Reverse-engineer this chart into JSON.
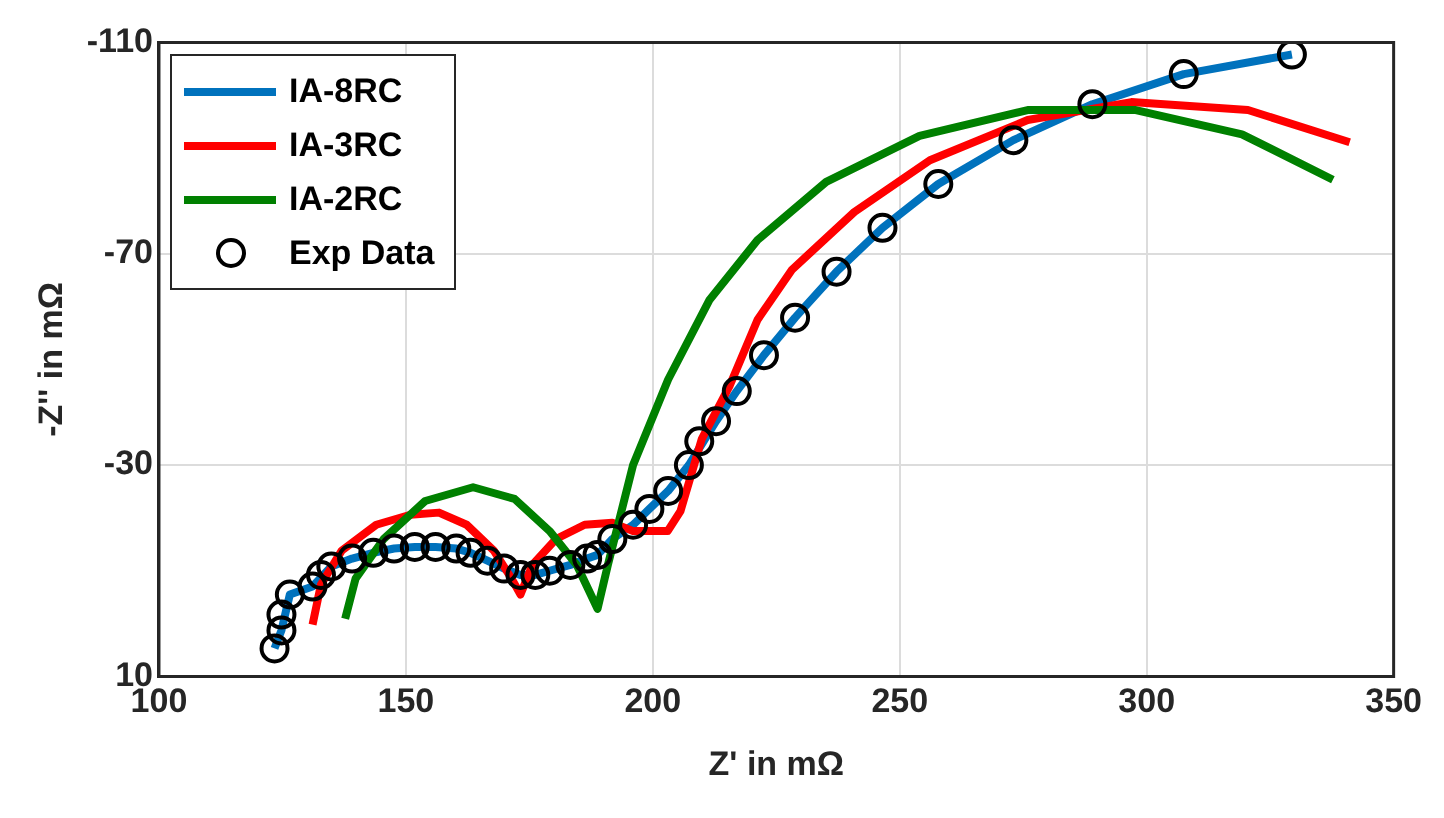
{
  "chart_data": {
    "type": "line",
    "xlabel": "Z' in mΩ",
    "ylabel": "-Z'' in mΩ",
    "xlim": [
      100,
      350
    ],
    "xticks": [
      100,
      150,
      200,
      250,
      300,
      350
    ],
    "ylim": [
      10,
      -110
    ],
    "yticks": [
      -110,
      -70,
      -30,
      10
    ],
    "grid": true,
    "legend": "top left",
    "series": [
      {
        "name": "IA-8RC",
        "color": "#0072bd",
        "marker": "none",
        "x": [
          123.4,
          124.8,
          126.5,
          131.1,
          134.9,
          139.1,
          143.4,
          147.6,
          151.8,
          156.0,
          160.2,
          163.1,
          166.5,
          169.9,
          173.2,
          176.2,
          179.1,
          183.3,
          186.7,
          188.8,
          191.8,
          196.0,
          199.3,
          203.1,
          207.3,
          212.8,
          217.0,
          222.5,
          228.8,
          237.2,
          246.5,
          257.8,
          273.0,
          289.0,
          307.5,
          329.4
        ],
        "values": [
          4.7,
          1.3,
          -5.5,
          -7.0,
          -10.8,
          -12.3,
          -13.4,
          -14.2,
          -14.5,
          -14.5,
          -14.2,
          -13.4,
          -11.9,
          -10.4,
          -9.2,
          -9.2,
          -10.0,
          -11.1,
          -12.3,
          -13.0,
          -16.0,
          -18.7,
          -21.7,
          -25.1,
          -30.0,
          -38.3,
          -44.0,
          -50.8,
          -57.9,
          -66.6,
          -74.9,
          -83.2,
          -91.5,
          -98.3,
          -104.0,
          -107.7
        ]
      },
      {
        "name": "IA-3RC",
        "color": "#ff0000",
        "marker": "none",
        "x": [
          131.1,
          132.8,
          137.0,
          144.0,
          150.9,
          156.7,
          162.3,
          167.8,
          171.4,
          173.2,
          175.6,
          180.4,
          186.2,
          191.8,
          196.0,
          203.0,
          205.6,
          209.9,
          215.6,
          221.2,
          228.2,
          240.8,
          256.1,
          275.9,
          296.9,
          320.5,
          341.1
        ],
        "values": [
          0.2,
          -7.4,
          -13.8,
          -18.7,
          -20.6,
          -21.0,
          -18.7,
          -13.8,
          -8.5,
          -5.5,
          -11.1,
          -16.0,
          -18.7,
          -19.1,
          -17.5,
          -17.5,
          -21.3,
          -34.9,
          -45.1,
          -57.5,
          -67.0,
          -77.9,
          -87.7,
          -95.3,
          -98.7,
          -97.2,
          -91.1
        ]
      },
      {
        "name": "IA-2RC",
        "color": "#008000",
        "marker": "none",
        "x": [
          137.7,
          139.8,
          145.5,
          153.9,
          163.6,
          172.0,
          179.1,
          184.6,
          188.8,
          190.9,
          196.0,
          203.1,
          211.5,
          221.2,
          235.1,
          254.0,
          275.9,
          297.8,
          319.3,
          337.7
        ],
        "values": [
          -0.9,
          -8.5,
          -16.0,
          -23.2,
          -25.8,
          -23.6,
          -17.5,
          -11.1,
          -2.8,
          -11.1,
          -30.0,
          -46.2,
          -61.3,
          -72.6,
          -83.6,
          -92.3,
          -97.2,
          -97.2,
          -92.6,
          -84.0
        ]
      },
      {
        "name": "Exp Data",
        "type": "scatter",
        "color": "#000000",
        "marker": "circle",
        "x": [
          123.4,
          124.8,
          124.8,
          126.5,
          131.1,
          132.8,
          134.9,
          139.1,
          143.4,
          147.6,
          151.8,
          156.0,
          160.2,
          163.1,
          166.5,
          169.9,
          173.2,
          176.2,
          179.1,
          183.3,
          186.7,
          188.8,
          191.8,
          196.0,
          199.3,
          203.1,
          207.3,
          209.4,
          212.8,
          217.0,
          222.5,
          228.8,
          237.2,
          246.5,
          257.8,
          273.0,
          289.0,
          307.5,
          329.4
        ],
        "values": [
          4.7,
          1.3,
          -1.7,
          -5.5,
          -7.0,
          -9.2,
          -10.8,
          -12.3,
          -13.4,
          -14.2,
          -14.5,
          -14.5,
          -14.2,
          -13.4,
          -11.9,
          -10.4,
          -9.2,
          -9.2,
          -10.0,
          -11.1,
          -12.3,
          -13.0,
          -16.0,
          -18.7,
          -21.7,
          -25.1,
          -30.0,
          -34.5,
          -38.3,
          -44.0,
          -50.8,
          -57.9,
          -66.6,
          -74.9,
          -83.2,
          -91.5,
          -98.3,
          -104.0,
          -107.7
        ]
      }
    ]
  }
}
